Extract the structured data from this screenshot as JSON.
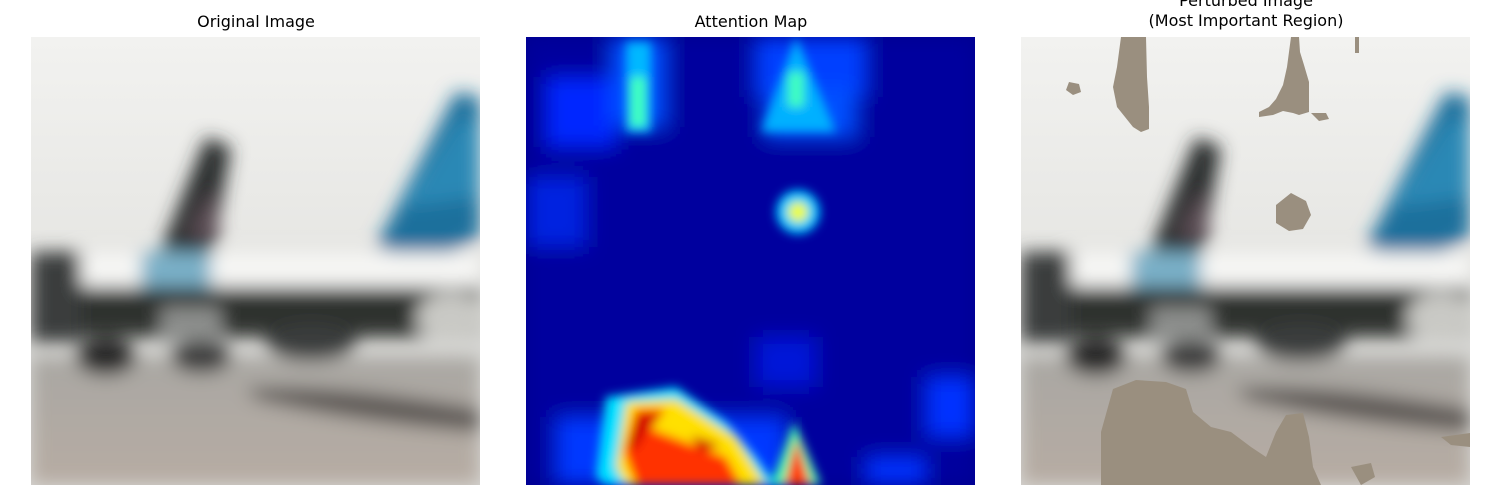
{
  "panels": [
    {
      "title": "Original Image"
    },
    {
      "title": "Attention Map"
    },
    {
      "title_line1": "Perturbed Image",
      "title_line2": "(Most Important Region)"
    }
  ]
}
